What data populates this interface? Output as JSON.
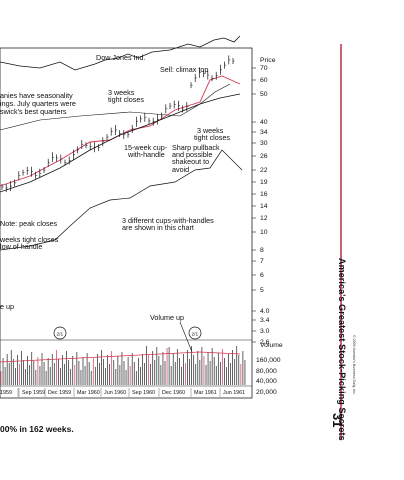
{
  "chart_data": {
    "type": "line",
    "title": "",
    "series_labels": {
      "main": "Dow Jones Ind."
    },
    "price_axis": {
      "label": "Price",
      "scale": "log",
      "ticks": [
        "70",
        "60",
        "50",
        "40",
        "34",
        "30",
        "26",
        "22",
        "19",
        "16",
        "14",
        "12",
        "10",
        "8",
        "7",
        "6",
        "5",
        "4.0",
        "3.4",
        "3.0",
        "2.6"
      ]
    },
    "volume_axis": {
      "label": "Volume",
      "ticks": [
        "160,000",
        "80,000",
        "40,000",
        "20,000"
      ]
    },
    "x_ticks": [
      "1959",
      "Sep 1959",
      "Dec 1959",
      "Mar 1960",
      "Jun 1960",
      "Sep 1960",
      "Dec 1960",
      "Mar 1961",
      "Jun 1961"
    ],
    "annotations": [
      {
        "id": "sell",
        "text": "Sell: climax top"
      },
      {
        "id": "seasonal1",
        "text": "anies have seasonality"
      },
      {
        "id": "seasonal2",
        "text": "ings. July quarters were"
      },
      {
        "id": "seasonal3",
        "text": "swick's best quarters"
      },
      {
        "id": "threeweeks_a1",
        "text": "3 weeks"
      },
      {
        "id": "threeweeks_a2",
        "text": "tight closes"
      },
      {
        "id": "threeweeks_b1",
        "text": "3 weeks"
      },
      {
        "id": "threeweeks_b2",
        "text": "tight closes"
      },
      {
        "id": "cup15_1",
        "text": "15-week cup-"
      },
      {
        "id": "cup15_2",
        "text": "with-handle"
      },
      {
        "id": "pullback1",
        "text": "Sharp pullback"
      },
      {
        "id": "pullback2",
        "text": "and possible"
      },
      {
        "id": "pullback3",
        "text": "shakeout to"
      },
      {
        "id": "pullback4",
        "text": "avoid"
      },
      {
        "id": "note",
        "text": "Note: peak closes"
      },
      {
        "id": "cups1",
        "text": "3 different cups-with-handles"
      },
      {
        "id": "cups2",
        "text": "are shown in this chart"
      },
      {
        "id": "weeks_tight1",
        "text": "weeks tight closes"
      },
      {
        "id": "weeks_tight2",
        "text": "low of handle"
      },
      {
        "id": "eup",
        "text": "e up"
      },
      {
        "id": "volup",
        "text": "Volume up"
      }
    ],
    "split_markers": [
      "2/1",
      "2/1"
    ],
    "caption": "00% in 162 weeks."
  },
  "sidebar": {
    "title": "America's Greatest Stock-Picking Secrets",
    "page_number": "31",
    "copyright": "© 2009 Investor's Business Daily, Inc."
  }
}
